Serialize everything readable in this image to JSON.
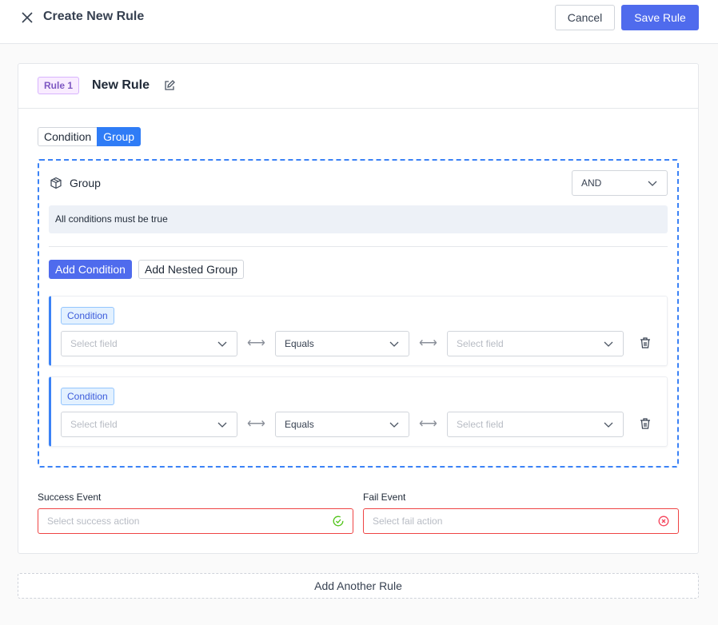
{
  "header": {
    "title": "Create New Rule",
    "cancel_label": "Cancel",
    "save_label": "Save Rule",
    "close_icon": "close-icon"
  },
  "rule": {
    "badge": "Rule 1",
    "name": "New Rule",
    "edit_icon": "edit-icon",
    "toggle": {
      "options": [
        "Condition",
        "Group"
      ],
      "active": "Group"
    },
    "group": {
      "label": "Group",
      "icon": "cube-icon",
      "operator": "AND",
      "description": "All conditions must be true",
      "add_condition_label": "Add Condition",
      "add_nested_group_label": "Add Nested Group",
      "conditions": [
        {
          "badge": "Condition",
          "left_placeholder": "Select field",
          "operator": "Equals",
          "right_placeholder": "Select field"
        },
        {
          "badge": "Condition",
          "left_placeholder": "Select field",
          "operator": "Equals",
          "right_placeholder": "Select field"
        }
      ]
    },
    "success": {
      "label": "Success Event",
      "placeholder": "Select success action"
    },
    "fail": {
      "label": "Fail Event",
      "placeholder": "Select fail action"
    }
  },
  "add_rule_label": "Add Another Rule",
  "colors": {
    "primary": "#4f6bed",
    "toggle_active": "#2f7cf6",
    "group_border": "#3b82f6",
    "error_border": "#ef4444",
    "success_icon": "#52c41a",
    "fail_icon": "#f5455c"
  }
}
